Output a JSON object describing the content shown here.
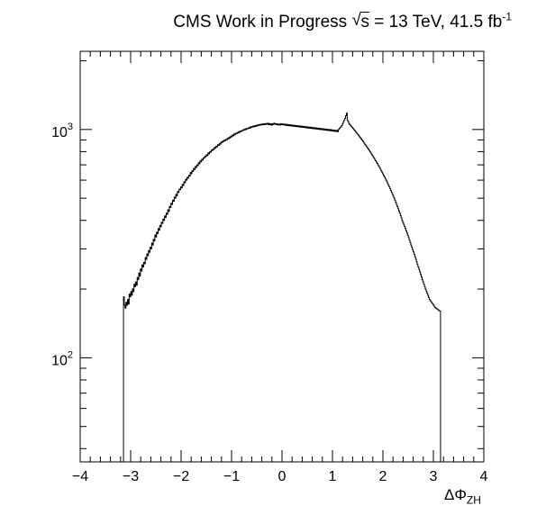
{
  "title": {
    "experiment": "CMS Work in Progress",
    "sqrt_symbol": "√",
    "sqrt_arg": "s",
    "energy": "= 13 TeV, 41.5 fb",
    "lumi_exp": "-1"
  },
  "chart_data": {
    "type": "histogram",
    "xlabel_main": "ΔΦ",
    "xlabel_sub": "ZH",
    "ylabel": "",
    "xlim": [
      -4,
      4
    ],
    "ylim": [
      35,
      2200
    ],
    "yscale": "log",
    "grid": false,
    "legend": "none",
    "x_ticks": [
      "−4",
      "−3",
      "−2",
      "−1",
      "0",
      "1",
      "2",
      "3",
      "4"
    ],
    "x_tick_values": [
      -4,
      -3,
      -2,
      -1,
      0,
      1,
      2,
      3,
      4
    ],
    "y_ticks": [
      {
        "value": 100,
        "base": "10",
        "exp": "2"
      },
      {
        "value": 1000,
        "base": "10",
        "exp": "3"
      }
    ],
    "bin_width": 0.0314,
    "x_start": -3.1416,
    "x_end": 3.1416,
    "values": [
      185,
      170,
      165,
      175,
      170,
      180,
      172,
      190,
      185,
      195,
      188,
      200,
      195,
      210,
      205,
      215,
      208,
      225,
      220,
      235,
      228,
      245,
      240,
      255,
      250,
      262,
      258,
      275,
      270,
      285,
      280,
      295,
      290,
      305,
      300,
      318,
      312,
      330,
      325,
      345,
      338,
      355,
      350,
      368,
      362,
      380,
      375,
      392,
      388,
      405,
      400,
      418,
      412,
      430,
      425,
      445,
      438,
      460,
      455,
      475,
      470,
      490,
      485,
      505,
      500,
      520,
      512,
      535,
      530,
      548,
      545,
      560,
      555,
      575,
      568,
      590,
      585,
      605,
      600,
      618,
      612,
      630,
      625,
      648,
      640,
      660,
      655,
      675,
      668,
      688,
      682,
      700,
      695,
      715,
      708,
      728,
      722,
      740,
      735,
      752,
      748,
      765,
      760,
      775,
      770,
      790,
      782,
      800,
      795,
      812,
      808,
      822,
      818,
      835,
      830,
      845,
      840,
      858,
      852,
      868,
      862,
      880,
      875,
      890,
      885,
      898,
      893,
      905,
      900,
      915,
      910,
      925,
      918,
      935,
      928,
      945,
      938,
      955,
      948,
      962,
      958,
      970,
      965,
      978,
      972,
      985,
      980,
      992,
      988,
      1000,
      995,
      1005,
      1000,
      1012,
      1008,
      1018,
      1012,
      1025,
      1018,
      1030,
      1025,
      1035,
      1028,
      1040,
      1032,
      1045,
      1038,
      1048,
      1042,
      1052,
      1045,
      1055,
      1048,
      1058,
      1050,
      1060,
      1052,
      1062,
      1055,
      1065,
      1050,
      1062,
      1048,
      1058,
      1045,
      1060,
      1052,
      1065,
      1055,
      1060,
      1050,
      1058,
      1048,
      1055,
      1045,
      1060,
      1050,
      1058,
      1048,
      1056,
      1045,
      1054,
      1042,
      1052,
      1040,
      1050,
      1038,
      1048,
      1036,
      1046,
      1034,
      1044,
      1032,
      1042,
      1030,
      1040,
      1028,
      1038,
      1026,
      1036,
      1024,
      1034,
      1022,
      1032,
      1020,
      1030,
      1018,
      1028,
      1016,
      1026,
      1014,
      1024,
      1012,
      1022,
      1010,
      1020,
      1008,
      1018,
      1006,
      1016,
      1004,
      1014,
      1002,
      1012,
      1000,
      1010,
      998,
      1008,
      996,
      1006,
      994,
      1004,
      992,
      1002,
      990,
      1000,
      988,
      998,
      986,
      996,
      984,
      994,
      982,
      992,
      980,
      990,
      978,
      1000,
      1010,
      1020,
      1030,
      1040,
      1060,
      1080,
      1100,
      1120,
      1150,
      1180,
      1100,
      1080,
      1060,
      1050,
      1040,
      1030,
      1020,
      1010,
      1000,
      990,
      980,
      970,
      960,
      950,
      940,
      930,
      920,
      910,
      900,
      890,
      880,
      870,
      860,
      850,
      840,
      830,
      820,
      810,
      800,
      790,
      780,
      770,
      760,
      750,
      740,
      730,
      720,
      710,
      700,
      690,
      680,
      670,
      660,
      650,
      640,
      630,
      620,
      610,
      600,
      590,
      580,
      570,
      560,
      550,
      540,
      530,
      520,
      510,
      500,
      490,
      480,
      470,
      460,
      450,
      440,
      430,
      420,
      410,
      400,
      392,
      384,
      376,
      368,
      360,
      352,
      344,
      336,
      328,
      320,
      312,
      305,
      298,
      291,
      284,
      277,
      270,
      263,
      256,
      250,
      244,
      238,
      232,
      226,
      220,
      215,
      210,
      205,
      200,
      196,
      192,
      188,
      184,
      180,
      178,
      176,
      174,
      172,
      170,
      168,
      166,
      165,
      164,
      163,
      162,
      161,
      160
    ]
  }
}
